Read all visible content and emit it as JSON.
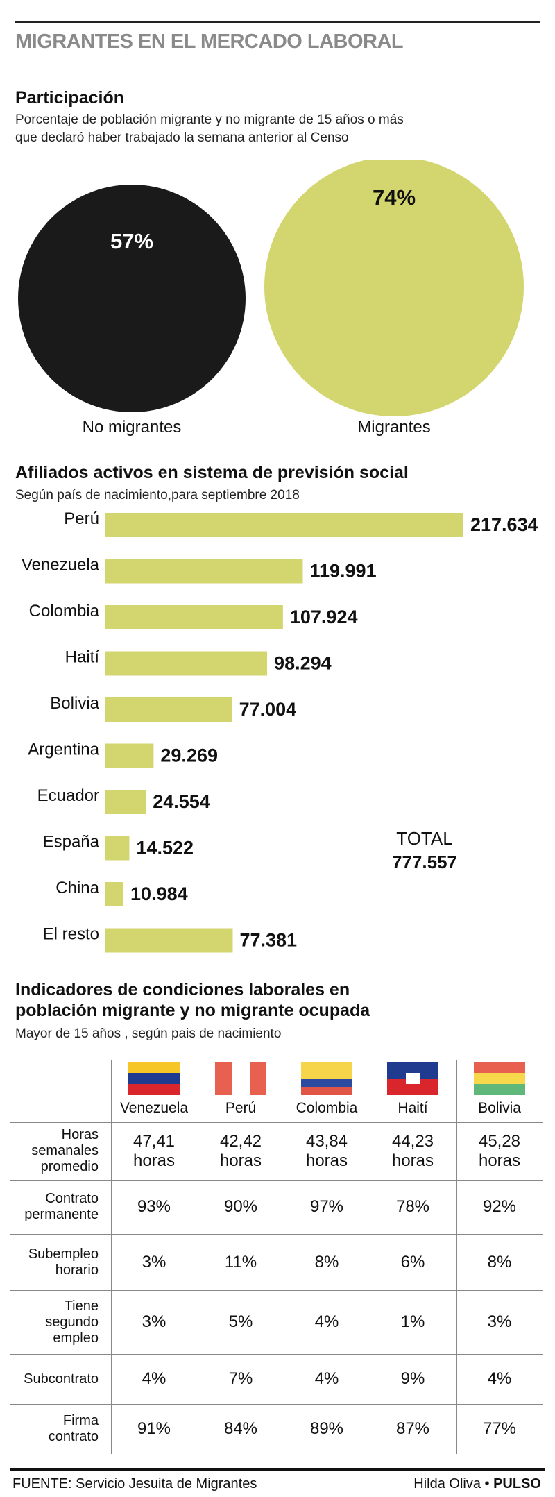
{
  "title": "MIGRANTES EN EL MERCADO LABORAL",
  "participation": {
    "title": "Participación",
    "subtitle_line1": "Porcentaje de población migrante y no migrante de 15 años o más",
    "subtitle_line2": "que declaró haber trabajado la semana anterior al Censo",
    "items": [
      {
        "label": "No migrantes",
        "value": 57,
        "value_text": "57%",
        "color": "#1a1a1a",
        "text_color": "#ffffff"
      },
      {
        "label": "Migrantes",
        "value": 74,
        "value_text": "74%",
        "color": "#d3d56f",
        "text_color": "#111111"
      }
    ]
  },
  "affiliates": {
    "title": "Afiliados activos en sistema de previsión social",
    "subtitle": "Según país de nacimiento,para septiembre 2018",
    "total_label": "TOTAL",
    "total_value": "777.557",
    "bar_color": "#d3d56f"
  },
  "chart_data": [
    {
      "type": "pie",
      "title": "Participación",
      "categories": [
        "No migrantes",
        "Migrantes"
      ],
      "values": [
        57,
        74
      ],
      "unit": "%"
    },
    {
      "type": "bar",
      "orientation": "horizontal",
      "title": "Afiliados activos en sistema de previsión social",
      "categories": [
        "Perú",
        "Venezuela",
        "Colombia",
        "Haití",
        "Bolivia",
        "Argentina",
        "Ecuador",
        "España",
        "China",
        "El resto"
      ],
      "values": [
        217634,
        119991,
        107924,
        98294,
        77004,
        29269,
        24554,
        14522,
        10984,
        77381
      ],
      "value_labels": [
        "217.634",
        "119.991",
        "107.924",
        "98.294",
        "77.004",
        "29.269",
        "24.554",
        "14.522",
        "10.984",
        "77.381"
      ],
      "xlim": [
        0,
        217634
      ],
      "grid": false
    },
    {
      "type": "table",
      "title": "Indicadores de condiciones laborales en población migrante y no migrante ocupada",
      "columns": [
        "Venezuela",
        "Perú",
        "Colombia",
        "Haití",
        "Bolivia"
      ],
      "rows": [
        {
          "label": "Horas semanales promedio",
          "values": [
            "47,41 horas",
            "42,42 horas",
            "43,84 horas",
            "44,23 horas",
            "45,28 horas"
          ]
        },
        {
          "label": "Contrato permanente",
          "values": [
            "93%",
            "90%",
            "97%",
            "78%",
            "92%"
          ]
        },
        {
          "label": "Subempleo horario",
          "values": [
            "3%",
            "11%",
            "8%",
            "6%",
            "8%"
          ]
        },
        {
          "label": "Tiene segundo empleo",
          "values": [
            "3%",
            "5%",
            "4%",
            "1%",
            "3%"
          ]
        },
        {
          "label": "Subcontrato",
          "values": [
            "4%",
            "7%",
            "4%",
            "9%",
            "4%"
          ]
        },
        {
          "label": "Firma contrato",
          "values": [
            "91%",
            "84%",
            "89%",
            "87%",
            "77%"
          ]
        }
      ]
    }
  ],
  "indicators": {
    "title_line1": "Indicadores de condiciones laborales en",
    "title_line2": "población migrante y no migrante ocupada",
    "subtitle": "Mayor de 15 años , según pais de nacimiento",
    "columns": [
      {
        "name": "Venezuela",
        "flag_icon": "venezuela-flag-icon",
        "flag_colors": [
          "#f6c626",
          "#1f3b8f",
          "#d8262c"
        ]
      },
      {
        "name": "Perú",
        "flag_icon": "peru-flag-icon",
        "flag_colors": [
          "#e8604f",
          "#ffffff",
          "#e8604f"
        ]
      },
      {
        "name": "Colombia",
        "flag_icon": "colombia-flag-icon",
        "flag_colors": [
          "#f7d54a",
          "#2c4aa0",
          "#e05545"
        ]
      },
      {
        "name": "Haití",
        "flag_icon": "haiti-flag-icon",
        "flag_colors": [
          "#1f3b8f",
          "#d8262c"
        ]
      },
      {
        "name": "Bolivia",
        "flag_icon": "bolivia-flag-icon",
        "flag_colors": [
          "#e8604f",
          "#f6d84a",
          "#5fb87a"
        ]
      }
    ],
    "rows": [
      {
        "label": "Horas semanales promedio",
        "values": [
          [
            "47,41",
            "horas"
          ],
          [
            "42,42",
            "horas"
          ],
          [
            "43,84",
            "horas"
          ],
          [
            "44,23",
            "horas"
          ],
          [
            "45,28",
            "horas"
          ]
        ]
      },
      {
        "label": "Contrato permanente",
        "values": [
          "93%",
          "90%",
          "97%",
          "78%",
          "92%"
        ]
      },
      {
        "label": "Subempleo horario",
        "values": [
          "3%",
          "11%",
          "8%",
          "6%",
          "8%"
        ]
      },
      {
        "label": "Tiene segundo empleo",
        "values": [
          "3%",
          "5%",
          "4%",
          "1%",
          "3%"
        ]
      },
      {
        "label": "Subcontrato",
        "values": [
          "4%",
          "7%",
          "4%",
          "9%",
          "4%"
        ]
      },
      {
        "label": "Firma contrato",
        "values": [
          "91%",
          "84%",
          "89%",
          "87%",
          "77%"
        ]
      }
    ]
  },
  "footer": {
    "source": "FUENTE: Servicio Jesuita de Migrantes",
    "author": "Hilda Oliva",
    "separator": "•",
    "brand": "PULSO"
  }
}
